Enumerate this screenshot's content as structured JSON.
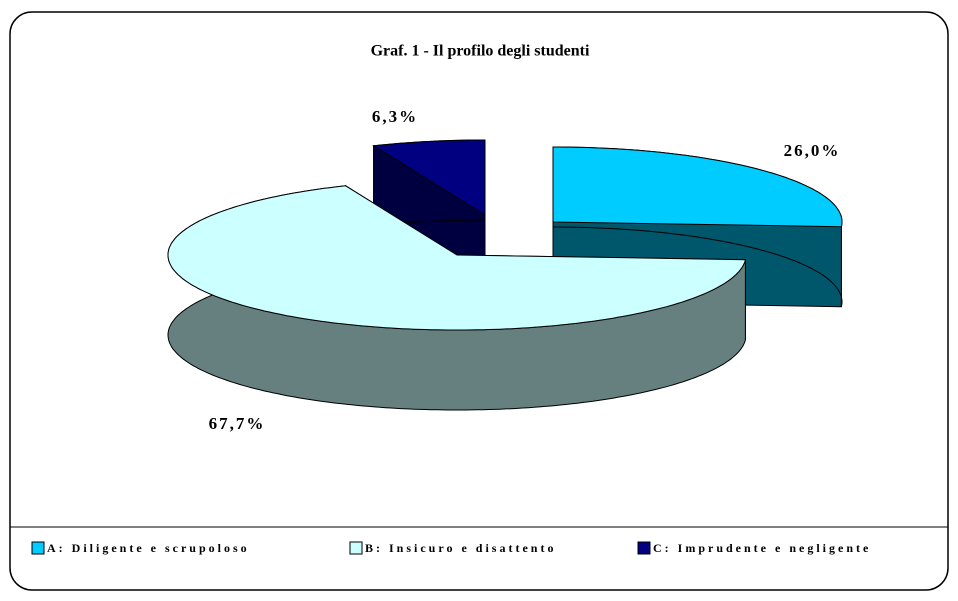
{
  "chart_data": {
    "type": "pie",
    "title": "Graf. 1 - Il profilo degli studenti",
    "categories": [
      "A: Diligente e scrupoloso",
      "B: Insicuro e disattento",
      "C: Imprudente e negligente"
    ],
    "values": [
      26.0,
      67.7,
      6.3
    ],
    "value_labels": [
      "26,0%",
      "67,7%",
      "6,3%"
    ],
    "colors": [
      "#00CCFF",
      "#CCFFFF",
      "#000080"
    ],
    "legend": "bottom"
  }
}
